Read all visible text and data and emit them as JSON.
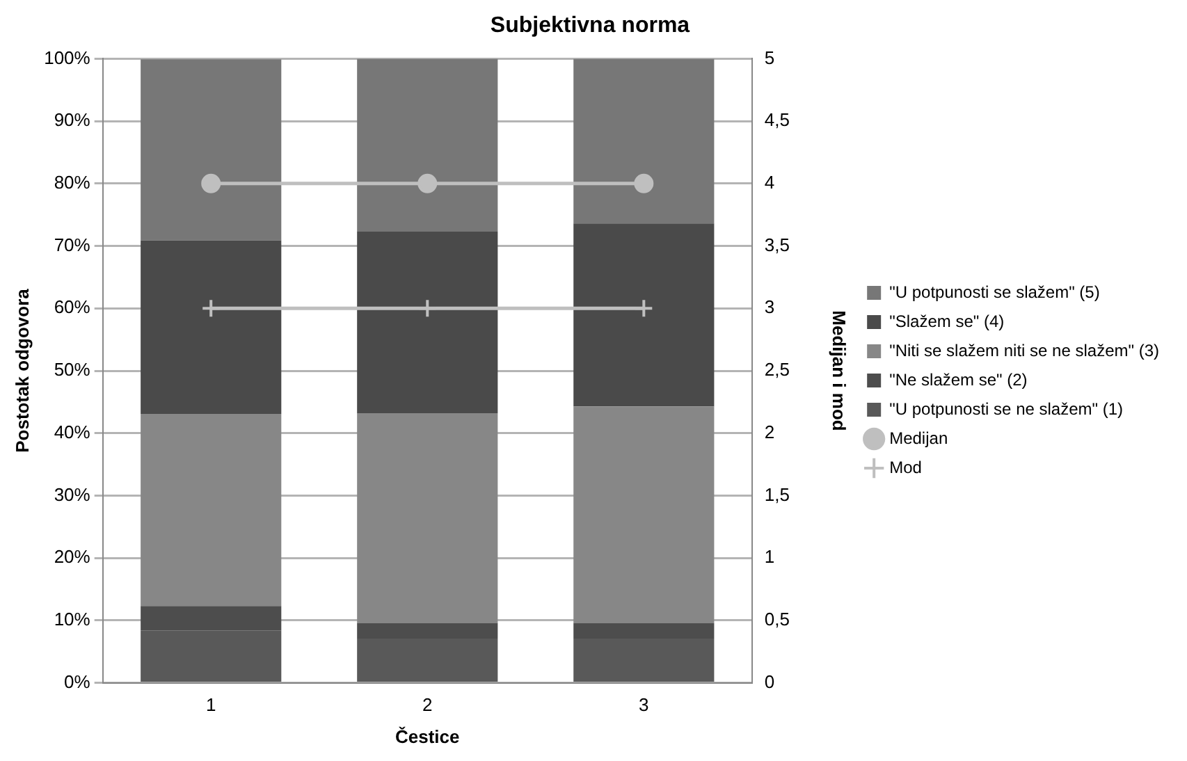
{
  "chart_data": {
    "type": "bar",
    "title": "Subjektivna norma",
    "xlabel": "Čestice",
    "ylabel": "Postotak odgovora",
    "y2label": "Medijan i mod",
    "categories": [
      "1",
      "2",
      "3"
    ],
    "stacked": true,
    "grid": "y",
    "legend": "right",
    "ylim": [
      0,
      100
    ],
    "yticks": [
      {
        "value": 0,
        "label": "0%"
      },
      {
        "value": 10,
        "label": "10%"
      },
      {
        "value": 20,
        "label": "20%"
      },
      {
        "value": 30,
        "label": "30%"
      },
      {
        "value": 40,
        "label": "40%"
      },
      {
        "value": 50,
        "label": "50%"
      },
      {
        "value": 60,
        "label": "60%"
      },
      {
        "value": 70,
        "label": "70%"
      },
      {
        "value": 80,
        "label": "80%"
      },
      {
        "value": 90,
        "label": "90%"
      },
      {
        "value": 100,
        "label": "100%"
      }
    ],
    "y2lim": [
      0,
      5
    ],
    "y2ticks": [
      0,
      {
        "value": 0.5,
        "label": "0,5"
      },
      1,
      {
        "value": 1.5,
        "label": "1,5"
      },
      2,
      {
        "value": 2.5,
        "label": "2,5"
      },
      3,
      {
        "value": 3.5,
        "label": "3,5"
      },
      4,
      {
        "value": 4.5,
        "label": "4,5"
      },
      5
    ],
    "series": [
      {
        "name": "\"U potpunosti se ne slažem\" (1)",
        "color": "#595959",
        "values": [
          8.4,
          7.1,
          7.1
        ]
      },
      {
        "name": "\"Ne slažem se\" (2)",
        "color": "#4d4d4d",
        "values": [
          3.9,
          2.5,
          2.5
        ]
      },
      {
        "name": "\"Niti se slažem niti se ne slažem\" (3)",
        "color": "#878787",
        "values": [
          30.8,
          33.6,
          34.7
        ]
      },
      {
        "name": "\"Slažem se\" (4)",
        "color": "#4a4a4a",
        "values": [
          27.8,
          29.1,
          29.3
        ]
      },
      {
        "name": "\"U potpunosti se slažem\" (5)",
        "color": "#777777",
        "values": [
          29.0,
          27.7,
          26.4
        ]
      },
      {
        "name": "Medijan",
        "type": "line",
        "axis": "y2",
        "marker": "circle",
        "color": "#bfbfbf",
        "values": [
          4,
          4,
          4
        ]
      },
      {
        "name": "Mod",
        "type": "line",
        "axis": "y2",
        "marker": "cross",
        "color": "#bfbfbf",
        "values": [
          3,
          3,
          3
        ]
      }
    ]
  }
}
